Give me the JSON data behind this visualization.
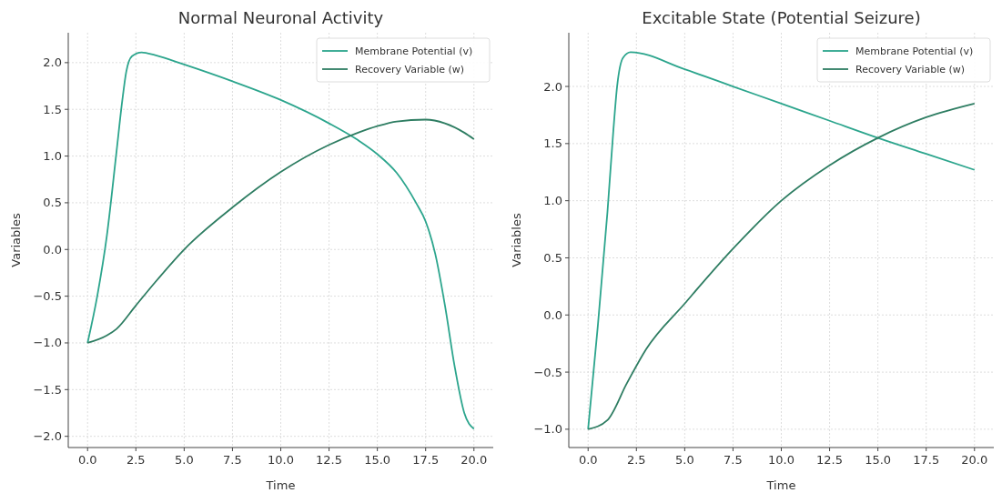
{
  "chart_data": [
    {
      "type": "line",
      "title": "Normal Neuronal Activity",
      "xlabel": "Time",
      "ylabel": "Variables",
      "xlim": [
        -1,
        21
      ],
      "ylim": [
        -2.12,
        2.32
      ],
      "xticks": [
        {
          "value": 0,
          "label": "0.0"
        },
        {
          "value": 2.5,
          "label": "2.5"
        },
        {
          "value": 5,
          "label": "5.0"
        },
        {
          "value": 7.5,
          "label": "7.5"
        },
        {
          "value": 10,
          "label": "10.0"
        },
        {
          "value": 12.5,
          "label": "12.5"
        },
        {
          "value": 15,
          "label": "15.0"
        },
        {
          "value": 17.5,
          "label": "17.5"
        },
        {
          "value": 20,
          "label": "20.0"
        }
      ],
      "yticks": [
        {
          "value": -2,
          "label": "−2.0"
        },
        {
          "value": -1.5,
          "label": "−1.5"
        },
        {
          "value": -1,
          "label": "−1.0"
        },
        {
          "value": -0.5,
          "label": "−0.5"
        },
        {
          "value": 0,
          "label": "0.0"
        },
        {
          "value": 0.5,
          "label": "0.5"
        },
        {
          "value": 1,
          "label": "1.0"
        },
        {
          "value": 1.5,
          "label": "1.5"
        },
        {
          "value": 2,
          "label": "2.0"
        }
      ],
      "grid": true,
      "legend": "top right",
      "series": [
        {
          "name": "Membrane Potential (v)",
          "color": "#2ca58d",
          "x": [
            0,
            0.5,
            1,
            1.5,
            1.8,
            2,
            2.3,
            2.8,
            3.5,
            5,
            7.5,
            10,
            12.5,
            14,
            15,
            16,
            17,
            17.5,
            18,
            18.5,
            19,
            19.5,
            20
          ],
          "values": [
            -1,
            -0.5,
            0.15,
            1.05,
            1.6,
            1.9,
            2.07,
            2.11,
            2.08,
            1.98,
            1.8,
            1.6,
            1.35,
            1.17,
            1.02,
            0.82,
            0.5,
            0.3,
            -0.05,
            -0.6,
            -1.25,
            -1.75,
            -1.92
          ]
        },
        {
          "name": "Recovery Variable (w)",
          "color": "#2e7d62",
          "x": [
            0,
            1,
            1.5,
            2.5,
            3.5,
            5,
            7.5,
            10,
            12.5,
            14,
            15,
            16,
            17.5,
            18.5,
            19.5,
            20
          ],
          "values": [
            -1,
            -0.92,
            -0.85,
            -0.6,
            -0.35,
            0,
            0.45,
            0.83,
            1.12,
            1.25,
            1.32,
            1.37,
            1.39,
            1.35,
            1.25,
            1.18
          ]
        }
      ]
    },
    {
      "type": "line",
      "title": "Excitable State (Potential Seizure)",
      "xlabel": "Time",
      "ylabel": "Variables",
      "xlim": [
        -1,
        21
      ],
      "ylim": [
        -1.16,
        2.47
      ],
      "xticks": [
        {
          "value": 0,
          "label": "0.0"
        },
        {
          "value": 2.5,
          "label": "2.5"
        },
        {
          "value": 5,
          "label": "5.0"
        },
        {
          "value": 7.5,
          "label": "7.5"
        },
        {
          "value": 10,
          "label": "10.0"
        },
        {
          "value": 12.5,
          "label": "12.5"
        },
        {
          "value": 15,
          "label": "15.0"
        },
        {
          "value": 17.5,
          "label": "17.5"
        },
        {
          "value": 20,
          "label": "20.0"
        }
      ],
      "yticks": [
        {
          "value": -1,
          "label": "−1.0"
        },
        {
          "value": -0.5,
          "label": "−0.5"
        },
        {
          "value": 0,
          "label": "0.0"
        },
        {
          "value": 0.5,
          "label": "0.5"
        },
        {
          "value": 1,
          "label": "1.0"
        },
        {
          "value": 1.5,
          "label": "1.5"
        },
        {
          "value": 2,
          "label": "2.0"
        }
      ],
      "grid": true,
      "legend": "top right",
      "series": [
        {
          "name": "Membrane Potential (v)",
          "color": "#2ca58d",
          "x": [
            0,
            0.5,
            1,
            1.3,
            1.5,
            1.8,
            2.2,
            5,
            7.5,
            10,
            12.5,
            15,
            17.5,
            20
          ],
          "values": [
            -1,
            -0.1,
            0.9,
            1.6,
            2.0,
            2.25,
            2.3,
            2.15,
            2.0,
            1.85,
            1.7,
            1.55,
            1.41,
            1.27
          ]
        },
        {
          "name": "Recovery Variable (w)",
          "color": "#2e7d62",
          "x": [
            0,
            1,
            2,
            3,
            5,
            7.5,
            10,
            12.5,
            15,
            17.5,
            20
          ],
          "values": [
            -1,
            -0.92,
            -0.6,
            -0.3,
            0.1,
            0.58,
            1.0,
            1.31,
            1.55,
            1.73,
            1.85
          ]
        }
      ]
    }
  ]
}
